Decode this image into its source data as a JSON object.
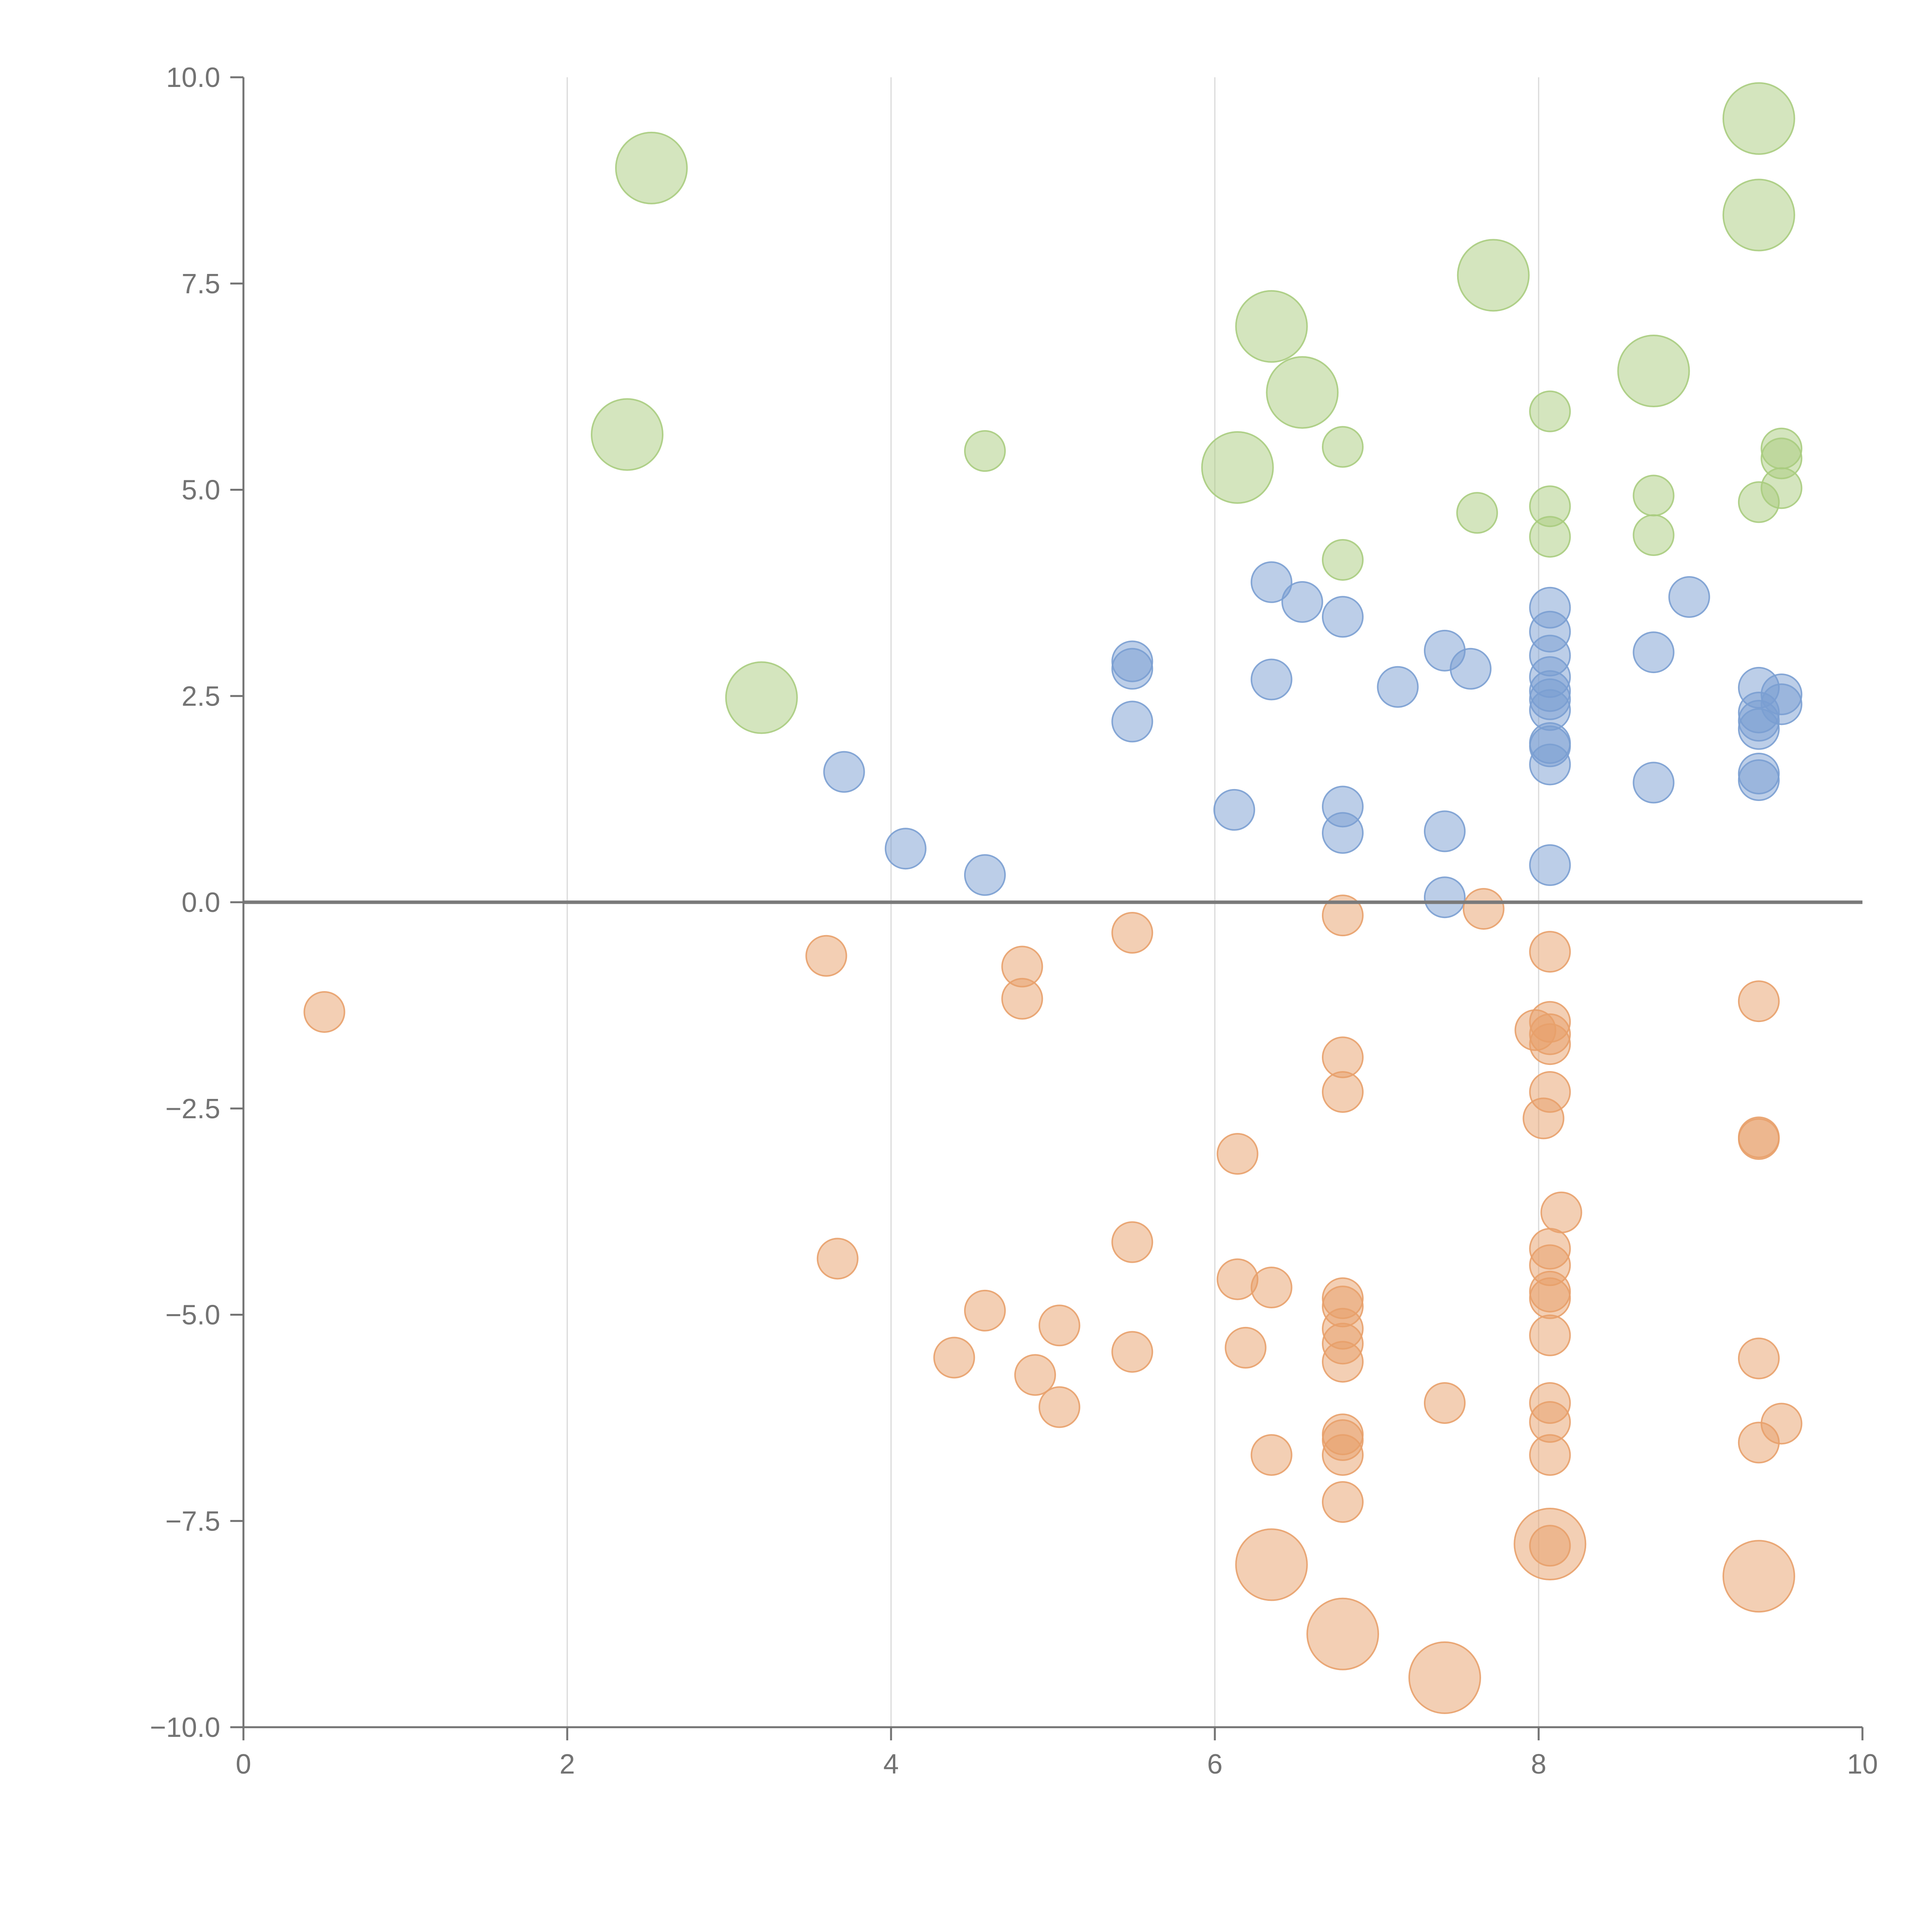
{
  "chart_data": {
    "type": "scatter",
    "title": "",
    "xlabel": "",
    "ylabel": "",
    "xlim": [
      0,
      10
    ],
    "ylim": [
      -10,
      10
    ],
    "grid": "vertical",
    "reference_line_y": 0,
    "x_ticks": [
      "0",
      "2",
      "4",
      "6",
      "8",
      "10"
    ],
    "y_ticks": [
      "10.0",
      "7.5",
      "5.0",
      "2.5",
      "0.0",
      "−2.5",
      "−5.0",
      "−7.5",
      "−10.0"
    ],
    "x_tick_values": [
      0,
      2,
      4,
      6,
      8,
      10
    ],
    "y_tick_values": [
      10,
      7.5,
      5,
      2.5,
      0,
      -2.5,
      -5,
      -7.5,
      -10
    ],
    "series": [
      {
        "name": "green",
        "color": "#a9cc7e",
        "points": [
          [
            2.52,
            8.9,
            3
          ],
          [
            2.37,
            5.67,
            3
          ],
          [
            3.2,
            2.48,
            3
          ],
          [
            4.58,
            5.47,
            1
          ],
          [
            6.14,
            5.27,
            3
          ],
          [
            6.35,
            6.98,
            3
          ],
          [
            6.54,
            6.18,
            3
          ],
          [
            6.79,
            5.52,
            1
          ],
          [
            6.79,
            4.15,
            1
          ],
          [
            7.62,
            4.72,
            1
          ],
          [
            7.72,
            7.6,
            3
          ],
          [
            8.07,
            5.95,
            1
          ],
          [
            8.07,
            4.8,
            1
          ],
          [
            8.07,
            4.43,
            1
          ],
          [
            8.71,
            6.44,
            3
          ],
          [
            8.71,
            4.93,
            1
          ],
          [
            8.71,
            4.45,
            1
          ],
          [
            9.36,
            9.5,
            3
          ],
          [
            9.36,
            8.33,
            3
          ],
          [
            9.36,
            4.85,
            1
          ],
          [
            9.5,
            5.5,
            1
          ],
          [
            9.5,
            5.38,
            1
          ],
          [
            9.5,
            5.02,
            1
          ]
        ]
      },
      {
        "name": "blue",
        "color": "#7a9ed1",
        "points": [
          [
            3.71,
            1.58,
            1
          ],
          [
            4.09,
            0.65,
            1
          ],
          [
            4.58,
            0.33,
            1
          ],
          [
            5.49,
            2.92,
            1
          ],
          [
            5.49,
            2.83,
            1
          ],
          [
            5.49,
            2.19,
            1
          ],
          [
            6.12,
            1.12,
            1
          ],
          [
            6.35,
            3.88,
            1
          ],
          [
            6.35,
            2.7,
            1
          ],
          [
            6.54,
            3.64,
            1
          ],
          [
            6.79,
            3.46,
            1
          ],
          [
            6.79,
            1.16,
            1
          ],
          [
            6.79,
            0.84,
            1
          ],
          [
            7.13,
            2.61,
            1
          ],
          [
            7.42,
            3.05,
            1
          ],
          [
            7.42,
            0.86,
            1
          ],
          [
            7.42,
            0.06,
            1
          ],
          [
            7.58,
            2.83,
            1
          ],
          [
            8.07,
            3.57,
            1
          ],
          [
            8.07,
            3.28,
            1
          ],
          [
            8.07,
            2.99,
            1
          ],
          [
            8.07,
            2.73,
            1
          ],
          [
            8.07,
            2.56,
            1
          ],
          [
            8.07,
            2.46,
            1
          ],
          [
            8.07,
            2.33,
            1
          ],
          [
            8.07,
            1.93,
            1
          ],
          [
            8.07,
            1.89,
            1
          ],
          [
            8.07,
            1.67,
            1
          ],
          [
            8.07,
            0.45,
            1
          ],
          [
            8.71,
            3.03,
            1
          ],
          [
            8.71,
            1.45,
            1
          ],
          [
            8.93,
            3.7,
            1
          ],
          [
            9.36,
            2.6,
            1
          ],
          [
            9.36,
            2.3,
            1
          ],
          [
            9.36,
            2.2,
            1
          ],
          [
            9.36,
            2.1,
            1
          ],
          [
            9.36,
            1.56,
            1
          ],
          [
            9.36,
            1.48,
            1
          ],
          [
            9.5,
            2.52,
            1
          ],
          [
            9.5,
            2.4,
            1
          ]
        ]
      },
      {
        "name": "orange",
        "color": "#e8a06a",
        "points": [
          [
            0.5,
            -1.33,
            1
          ],
          [
            3.6,
            -0.65,
            1
          ],
          [
            3.67,
            -4.32,
            1
          ],
          [
            4.39,
            -5.52,
            1
          ],
          [
            4.58,
            -4.95,
            1
          ],
          [
            4.81,
            -0.78,
            1
          ],
          [
            4.81,
            -1.17,
            1
          ],
          [
            4.89,
            -5.73,
            1
          ],
          [
            5.04,
            -5.13,
            1
          ],
          [
            5.04,
            -6.12,
            1
          ],
          [
            5.49,
            -0.37,
            1
          ],
          [
            5.49,
            -4.12,
            1
          ],
          [
            5.49,
            -5.45,
            1
          ],
          [
            6.14,
            -3.05,
            1
          ],
          [
            6.14,
            -4.57,
            1
          ],
          [
            6.19,
            -5.4,
            1
          ],
          [
            6.35,
            -4.67,
            1
          ],
          [
            6.35,
            -6.7,
            1
          ],
          [
            6.35,
            -8.03,
            3
          ],
          [
            6.79,
            -0.16,
            1
          ],
          [
            6.79,
            -1.88,
            1
          ],
          [
            6.79,
            -2.3,
            1
          ],
          [
            6.79,
            -4.8,
            1
          ],
          [
            6.79,
            -4.9,
            1
          ],
          [
            6.79,
            -5.17,
            1
          ],
          [
            6.79,
            -5.35,
            1
          ],
          [
            6.79,
            -5.57,
            1
          ],
          [
            6.79,
            -6.45,
            1
          ],
          [
            6.79,
            -6.52,
            1
          ],
          [
            6.79,
            -6.7,
            1
          ],
          [
            6.79,
            -7.27,
            1
          ],
          [
            6.79,
            -8.87,
            3
          ],
          [
            7.42,
            -6.07,
            1
          ],
          [
            7.42,
            -9.4,
            3
          ],
          [
            7.66,
            -0.08,
            1
          ],
          [
            7.98,
            -1.55,
            1
          ],
          [
            8.03,
            -2.62,
            1
          ],
          [
            8.07,
            -0.6,
            1
          ],
          [
            8.07,
            -1.45,
            1
          ],
          [
            8.07,
            -1.6,
            1
          ],
          [
            8.07,
            -1.72,
            1
          ],
          [
            8.07,
            -2.3,
            1
          ],
          [
            8.07,
            -4.2,
            1
          ],
          [
            8.07,
            -4.4,
            1
          ],
          [
            8.07,
            -4.72,
            1
          ],
          [
            8.07,
            -4.8,
            1
          ],
          [
            8.07,
            -5.25,
            1
          ],
          [
            8.07,
            -6.07,
            1
          ],
          [
            8.07,
            -6.3,
            1
          ],
          [
            8.07,
            -6.7,
            1
          ],
          [
            8.07,
            -7.8,
            1
          ],
          [
            8.07,
            -7.78,
            3
          ],
          [
            8.14,
            -3.76,
            1
          ],
          [
            9.36,
            -1.2,
            1
          ],
          [
            9.36,
            -2.85,
            1
          ],
          [
            9.36,
            -2.87,
            1
          ],
          [
            9.36,
            -5.53,
            1
          ],
          [
            9.36,
            -6.55,
            1
          ],
          [
            9.36,
            -8.17,
            3
          ],
          [
            9.5,
            -6.32,
            1
          ]
        ]
      }
    ]
  }
}
